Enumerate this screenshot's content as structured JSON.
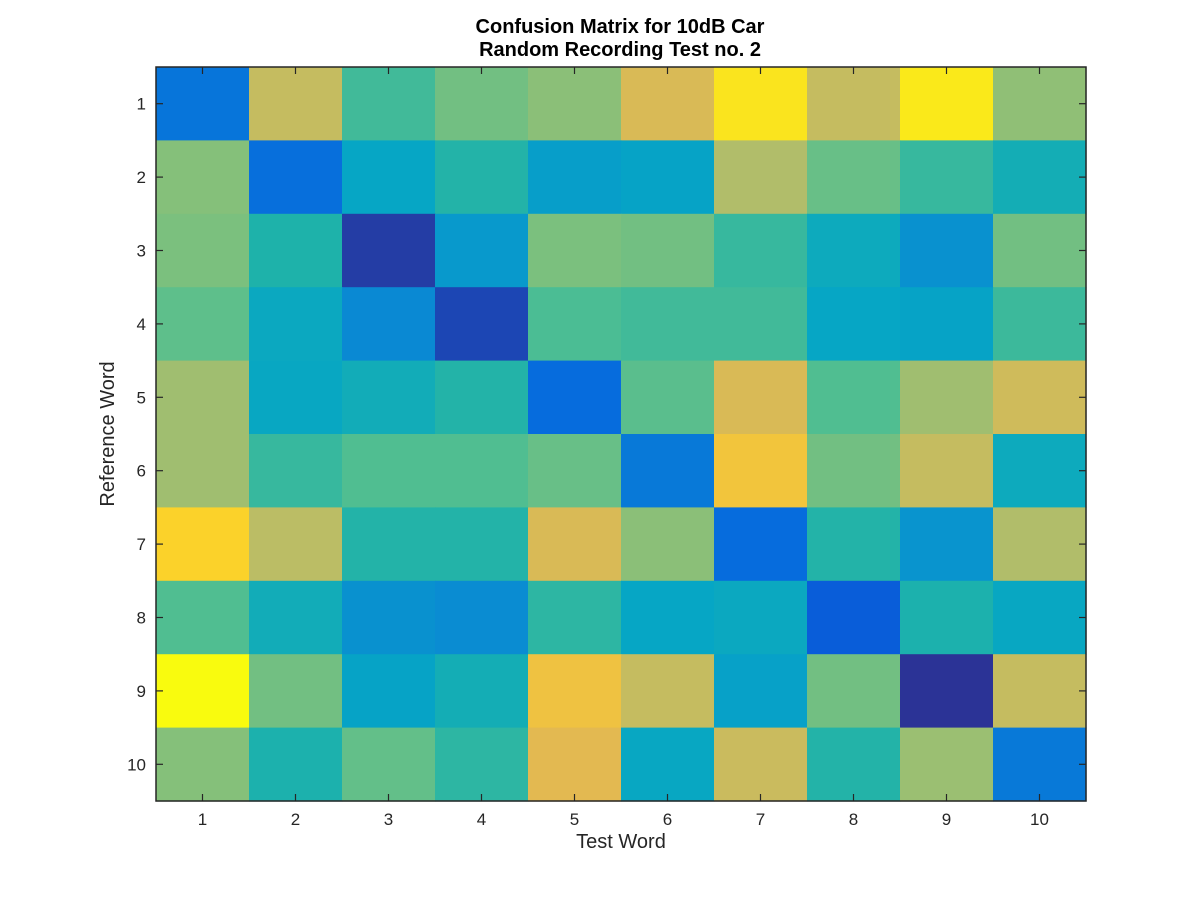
{
  "chart_data": {
    "type": "heatmap",
    "title_lines": [
      "Confusion Matrix for 10dB Car",
      "Random Recording Test no. 2"
    ],
    "xlabel": "Test Word",
    "ylabel": "Reference Word",
    "x_categories": [
      "1",
      "2",
      "3",
      "4",
      "5",
      "6",
      "7",
      "8",
      "9",
      "10"
    ],
    "y_categories": [
      "1",
      "2",
      "3",
      "4",
      "5",
      "6",
      "7",
      "8",
      "9",
      "10"
    ],
    "colormap": "parula",
    "value_range": [
      0,
      1
    ],
    "values": [
      [
        0.18,
        0.78,
        0.52,
        0.62,
        0.67,
        0.82,
        0.96,
        0.78,
        0.97,
        0.68
      ],
      [
        0.66,
        0.16,
        0.35,
        0.46,
        0.32,
        0.34,
        0.74,
        0.6,
        0.5,
        0.41
      ],
      [
        0.64,
        0.45,
        0.04,
        0.3,
        0.64,
        0.62,
        0.5,
        0.38,
        0.27,
        0.62
      ],
      [
        0.58,
        0.37,
        0.24,
        0.06,
        0.54,
        0.52,
        0.52,
        0.35,
        0.34,
        0.51
      ],
      [
        0.71,
        0.36,
        0.4,
        0.46,
        0.15,
        0.57,
        0.82,
        0.55,
        0.71,
        0.8
      ],
      [
        0.71,
        0.5,
        0.55,
        0.55,
        0.6,
        0.19,
        0.89,
        0.62,
        0.78,
        0.38
      ],
      [
        0.93,
        0.76,
        0.46,
        0.46,
        0.82,
        0.67,
        0.15,
        0.46,
        0.28,
        0.74
      ],
      [
        0.55,
        0.4,
        0.27,
        0.25,
        0.48,
        0.35,
        0.37,
        0.11,
        0.44,
        0.36
      ],
      [
        1.0,
        0.62,
        0.34,
        0.41,
        0.88,
        0.78,
        0.33,
        0.62,
        0.02,
        0.78
      ],
      [
        0.66,
        0.44,
        0.59,
        0.48,
        0.84,
        0.36,
        0.79,
        0.46,
        0.7,
        0.19
      ]
    ],
    "grid": false,
    "legend": "none"
  }
}
